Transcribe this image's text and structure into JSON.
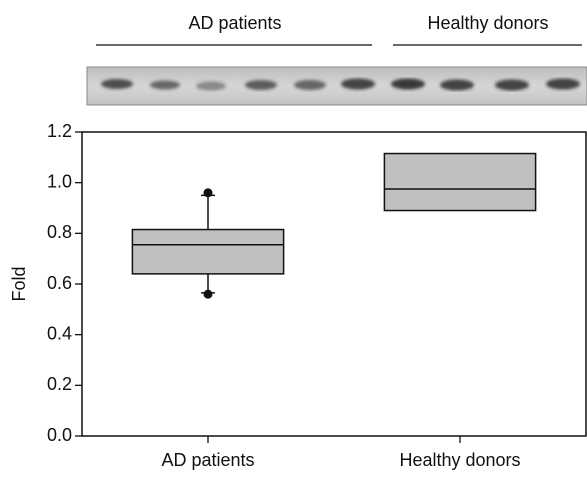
{
  "chart_data": {
    "type": "box",
    "header_labels": [
      "AD patients",
      "Healthy donors"
    ],
    "ylabel": "Fold",
    "categories": [
      "AD patients",
      "Healthy donors"
    ],
    "boxes": [
      {
        "q1": 0.64,
        "median": 0.755,
        "q3": 0.815,
        "whisker_low": 0.565,
        "whisker_high": 0.95,
        "outliers": [
          0.56,
          0.96
        ]
      },
      {
        "q1": 0.89,
        "median": 0.975,
        "q3": 1.115
      }
    ],
    "color": "#c0c0c0",
    "ylim": [
      0,
      1.2
    ],
    "yticks": [
      {
        "value": 0,
        "label": "0.0"
      },
      0.2,
      0.4,
      0.6,
      0.8,
      {
        "value": 1,
        "label": "1.0"
      },
      1.2
    ]
  }
}
